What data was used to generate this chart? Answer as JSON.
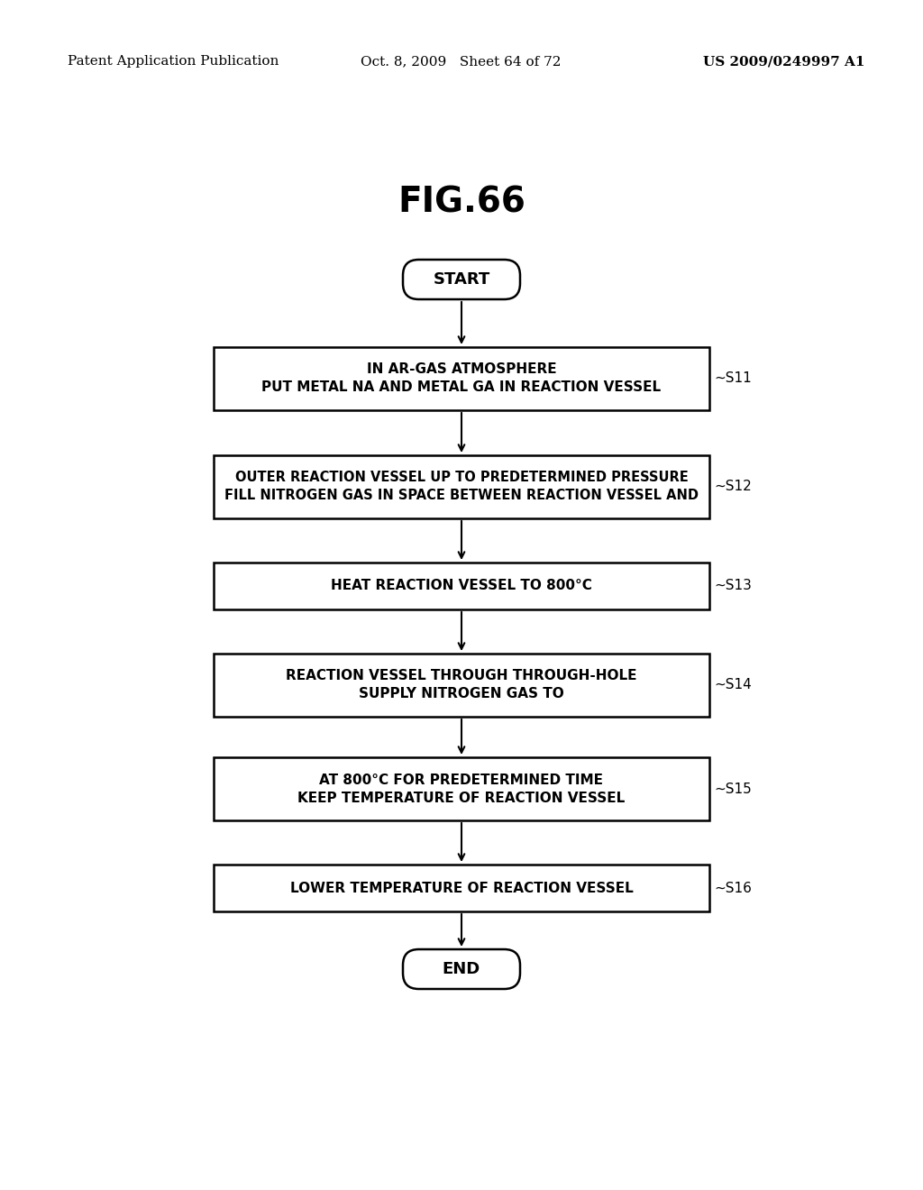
{
  "title": "FIG.66",
  "header_left": "Patent Application Publication",
  "header_mid": "Oct. 8, 2009   Sheet 64 of 72",
  "header_right": "US 2009/0249997 A1",
  "start_label": "START",
  "end_label": "END",
  "steps": [
    {
      "id": "S11",
      "lines": [
        "PUT METAL NA AND METAL GA IN REACTION VESSEL",
        "IN AR-GAS ATMOSPHERE"
      ],
      "label": "S11"
    },
    {
      "id": "S12",
      "lines": [
        "FILL NITROGEN GAS IN SPACE BETWEEN REACTION VESSEL AND",
        "OUTER REACTION VESSEL UP TO PREDETERMINED PRESSURE"
      ],
      "label": "S12"
    },
    {
      "id": "S13",
      "lines": [
        "HEAT REACTION VESSEL TO 800°C"
      ],
      "label": "S13"
    },
    {
      "id": "S14",
      "lines": [
        "SUPPLY NITROGEN GAS TO",
        "REACTION VESSEL THROUGH THROUGH-HOLE"
      ],
      "label": "S14"
    },
    {
      "id": "S15",
      "lines": [
        "KEEP TEMPERATURE OF REACTION VESSEL",
        "AT 800°C FOR PREDETERMINED TIME"
      ],
      "label": "S15"
    },
    {
      "id": "S16",
      "lines": [
        "LOWER TEMPERATURE OF REACTION VESSEL"
      ],
      "label": "S16"
    }
  ],
  "bg_color": "#ffffff",
  "box_edge_color": "#000000",
  "text_color": "#000000",
  "arrow_color": "#000000"
}
